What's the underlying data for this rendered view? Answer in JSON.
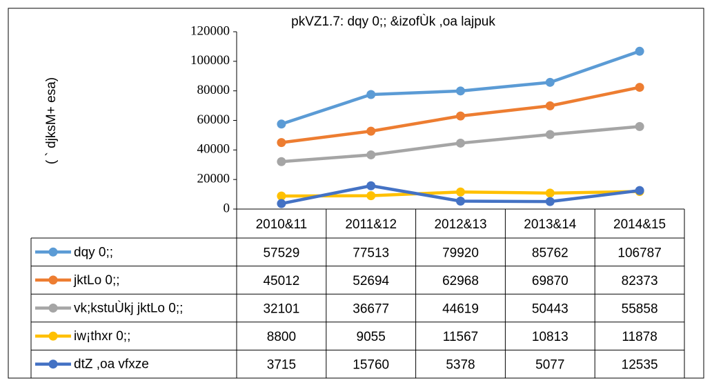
{
  "chart_data": {
    "type": "line",
    "title": "pkVZ1.7: dqy 0;; &izofÙk ,oa lajpuk",
    "y_label": "( ` djksM+ esa)",
    "categories": [
      "2010&11",
      "2011&12",
      "2012&13",
      "2013&14",
      "2014&15"
    ],
    "series": [
      {
        "name": "dqy 0;;",
        "color": "#5b9bd5",
        "values": [
          57529,
          77513,
          79920,
          85762,
          106787
        ]
      },
      {
        "name": "jktLo 0;;",
        "color": "#ed7d31",
        "values": [
          45012,
          52694,
          62968,
          69870,
          82373
        ]
      },
      {
        "name": "vk;kstuÙkj jktLo 0;;",
        "color": "#a5a5a5",
        "values": [
          32101,
          36677,
          44619,
          50443,
          55858
        ]
      },
      {
        "name": "iw¡thxr 0;;",
        "color": "#ffc000",
        "values": [
          8800,
          9055,
          11567,
          10813,
          11878
        ]
      },
      {
        "name": "dtZ ,oa vfxze",
        "color": "#4472c4",
        "values": [
          3715,
          15760,
          5378,
          5077,
          12535
        ]
      }
    ],
    "ylim": [
      0,
      120000
    ],
    "yticks": [
      0,
      20000,
      40000,
      60000,
      80000,
      100000,
      120000
    ],
    "grid": false
  }
}
